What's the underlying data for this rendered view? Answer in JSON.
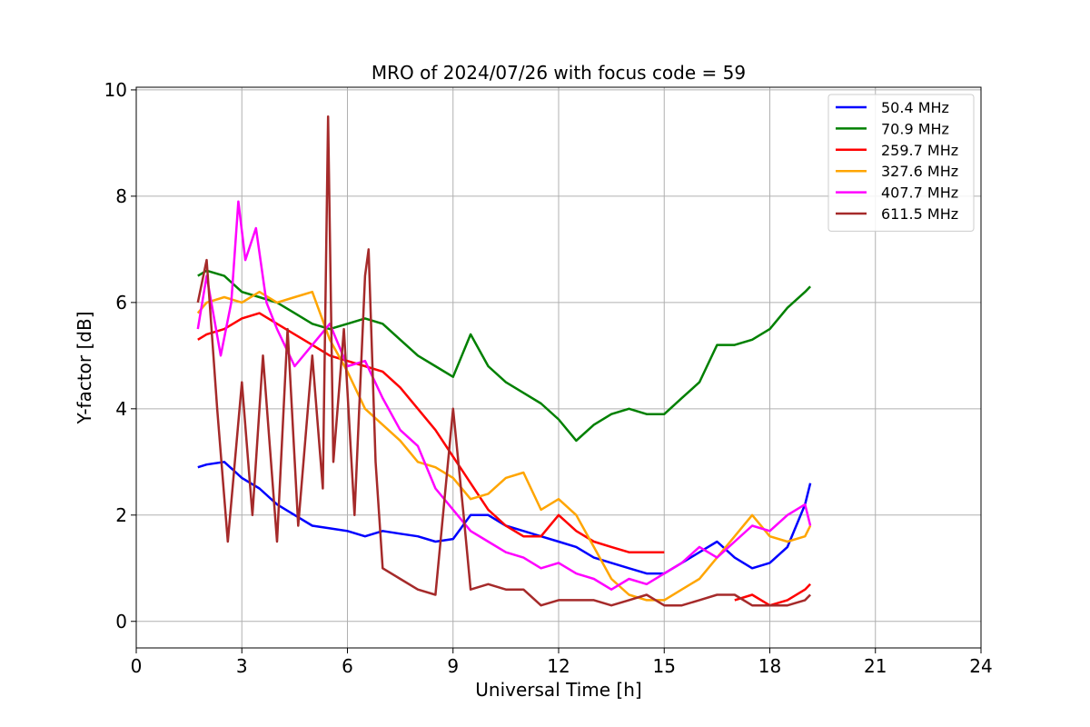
{
  "chart_data": {
    "type": "line",
    "title": "MRO of 2024/07/26 with focus code = 59",
    "xlabel": "Universal Time [h]",
    "ylabel": "Y-factor [dB]",
    "xlim": [
      0,
      24
    ],
    "ylim": [
      -0.5,
      10.05
    ],
    "xticks": [
      0,
      3,
      6,
      9,
      12,
      15,
      18,
      21,
      24
    ],
    "yticks": [
      0,
      2,
      4,
      6,
      8,
      10
    ],
    "grid": true,
    "legend_position": "top-right",
    "series": [
      {
        "name": " 50.4 MHz",
        "color": "#0000ff",
        "x": [
          1.75,
          2.0,
          2.5,
          3.0,
          3.5,
          4.0,
          4.5,
          5.0,
          5.5,
          6.0,
          6.5,
          7.0,
          7.5,
          8.0,
          8.5,
          9.0,
          9.5,
          10.0,
          10.5,
          11.0,
          11.5,
          12.0,
          12.5,
          13.0,
          13.5,
          14.0,
          14.5,
          15.0,
          15.5,
          16.0,
          16.5,
          17.0,
          17.5,
          18.0,
          18.5,
          19.0,
          19.15
        ],
        "y": [
          2.9,
          2.95,
          3.0,
          2.7,
          2.5,
          2.2,
          2.0,
          1.8,
          1.75,
          1.7,
          1.6,
          1.7,
          1.65,
          1.6,
          1.5,
          1.55,
          2.0,
          2.0,
          1.8,
          1.7,
          1.6,
          1.5,
          1.4,
          1.2,
          1.1,
          1.0,
          0.9,
          0.9,
          1.1,
          1.3,
          1.5,
          1.2,
          1.0,
          1.1,
          1.4,
          2.2,
          2.6
        ]
      },
      {
        "name": " 70.9 MHz",
        "color": "#008000",
        "x": [
          1.75,
          2.0,
          2.5,
          3.0,
          3.5,
          4.0,
          4.5,
          5.0,
          5.5,
          6.0,
          6.5,
          7.0,
          7.5,
          8.0,
          8.5,
          9.0,
          9.5,
          10.0,
          10.5,
          11.0,
          11.5,
          12.0,
          12.5,
          13.0,
          13.5,
          14.0,
          14.5,
          15.0,
          15.5,
          16.0,
          16.5,
          17.0,
          17.5,
          18.0,
          18.5,
          19.0,
          19.15
        ],
        "y": [
          6.5,
          6.6,
          6.5,
          6.2,
          6.1,
          6.0,
          5.8,
          5.6,
          5.5,
          5.6,
          5.7,
          5.6,
          5.3,
          5.0,
          4.8,
          4.6,
          5.4,
          4.8,
          4.5,
          4.3,
          4.1,
          3.8,
          3.4,
          3.7,
          3.9,
          4.0,
          3.9,
          3.9,
          4.2,
          4.5,
          5.2,
          5.2,
          5.3,
          5.5,
          5.9,
          6.2,
          6.3
        ]
      },
      {
        "name": "259.7 MHz",
        "color": "#ff0000",
        "x": [
          1.75,
          2.0,
          2.5,
          3.0,
          3.5,
          4.0,
          4.5,
          5.0,
          5.5,
          6.0,
          6.5,
          7.0,
          7.5,
          8.0,
          8.5,
          9.0,
          9.5,
          10.0,
          10.5,
          11.0,
          11.5,
          12.0,
          12.5,
          13.0,
          13.5,
          14.0,
          14.5,
          15.0,
          15.5,
          16.0,
          16.5,
          17.0,
          17.5,
          18.0,
          18.5,
          19.0,
          19.15
        ],
        "y": [
          5.3,
          5.4,
          5.5,
          5.7,
          5.8,
          5.6,
          5.4,
          5.2,
          5.0,
          4.9,
          4.8,
          4.7,
          4.4,
          4.0,
          3.6,
          3.1,
          2.6,
          2.1,
          1.8,
          1.6,
          1.6,
          2.0,
          1.7,
          1.5,
          1.4,
          1.3,
          1.3,
          1.3,
          null,
          null,
          null,
          0.4,
          0.5,
          0.3,
          0.4,
          0.6,
          0.7
        ]
      },
      {
        "name": "327.6 MHz",
        "color": "#ffa500",
        "x": [
          1.75,
          2.0,
          2.5,
          3.0,
          3.5,
          4.0,
          4.5,
          5.0,
          5.5,
          6.0,
          6.5,
          7.0,
          7.5,
          8.0,
          8.5,
          9.0,
          9.5,
          10.0,
          10.5,
          11.0,
          11.5,
          12.0,
          12.5,
          13.0,
          13.5,
          14.0,
          14.5,
          15.0,
          15.5,
          16.0,
          16.5,
          17.0,
          17.5,
          18.0,
          18.5,
          19.0,
          19.15
        ],
        "y": [
          5.8,
          6.0,
          6.1,
          6.0,
          6.2,
          6.0,
          6.1,
          6.2,
          5.3,
          4.7,
          4.0,
          3.7,
          3.4,
          3.0,
          2.9,
          2.7,
          2.3,
          2.4,
          2.7,
          2.8,
          2.1,
          2.3,
          2.0,
          1.4,
          0.8,
          0.5,
          0.4,
          0.4,
          0.6,
          0.8,
          1.2,
          1.6,
          2.0,
          1.6,
          1.5,
          1.6,
          1.8
        ]
      },
      {
        "name": "407.7 MHz",
        "color": "#ff00ff",
        "x": [
          1.75,
          2.0,
          2.4,
          2.7,
          2.9,
          3.1,
          3.4,
          3.7,
          4.0,
          4.5,
          5.0,
          5.5,
          6.0,
          6.5,
          7.0,
          7.5,
          8.0,
          8.5,
          9.0,
          9.5,
          10.0,
          10.5,
          11.0,
          11.5,
          12.0,
          12.5,
          13.0,
          13.5,
          14.0,
          14.5,
          15.0,
          15.5,
          16.0,
          16.5,
          17.0,
          17.5,
          18.0,
          18.5,
          19.0,
          19.15
        ],
        "y": [
          5.5,
          6.5,
          5.0,
          6.0,
          7.9,
          6.8,
          7.4,
          6.0,
          5.5,
          4.8,
          5.2,
          5.6,
          4.8,
          4.9,
          4.2,
          3.6,
          3.3,
          2.5,
          2.1,
          1.7,
          1.5,
          1.3,
          1.2,
          1.0,
          1.1,
          0.9,
          0.8,
          0.6,
          0.8,
          0.7,
          0.9,
          1.1,
          1.4,
          1.2,
          1.5,
          1.8,
          1.7,
          2.0,
          2.2,
          1.8
        ]
      },
      {
        "name": "611.5 MHz",
        "color": "#a52a2a",
        "x": [
          1.75,
          2.0,
          2.3,
          2.6,
          3.0,
          3.3,
          3.6,
          4.0,
          4.3,
          4.6,
          5.0,
          5.3,
          5.45,
          5.6,
          5.9,
          6.2,
          6.5,
          6.6,
          6.8,
          7.0,
          7.5,
          8.0,
          8.5,
          9.0,
          9.3,
          9.5,
          10.0,
          10.5,
          11.0,
          11.5,
          12.0,
          12.5,
          13.0,
          13.5,
          14.0,
          14.5,
          15.0,
          15.5,
          16.0,
          16.5,
          17.0,
          17.5,
          18.0,
          18.5,
          19.0,
          19.15
        ],
        "y": [
          6.0,
          6.8,
          4.0,
          1.5,
          4.5,
          2.0,
          5.0,
          1.5,
          5.5,
          1.8,
          5.0,
          2.5,
          9.5,
          3.0,
          5.5,
          2.0,
          6.5,
          7.0,
          3.0,
          1.0,
          0.8,
          0.6,
          0.5,
          4.0,
          2.0,
          0.6,
          0.7,
          0.6,
          0.6,
          0.3,
          0.4,
          0.4,
          0.4,
          0.3,
          0.4,
          0.5,
          0.3,
          0.3,
          0.4,
          0.5,
          0.5,
          0.3,
          0.3,
          0.3,
          0.4,
          0.5
        ]
      }
    ]
  }
}
